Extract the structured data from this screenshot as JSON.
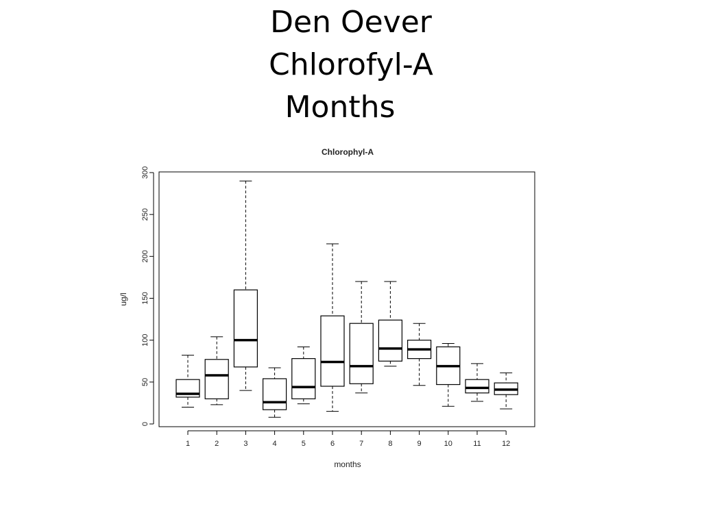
{
  "slide": {
    "title_lines": [
      "Den Oever",
      "Chlorofyl-A",
      "Months"
    ]
  },
  "chart_data": {
    "type": "boxplot",
    "title": "Chlorophyl-A",
    "xlabel": "months",
    "ylabel": "ug/l",
    "ylim": [
      0,
      300
    ],
    "yticks": [
      0,
      50,
      100,
      150,
      200,
      250,
      300
    ],
    "grid": false,
    "categories": [
      "1",
      "2",
      "3",
      "4",
      "5",
      "6",
      "7",
      "8",
      "9",
      "10",
      "11",
      "12"
    ],
    "boxes": [
      {
        "min": 20,
        "q1": 32,
        "median": 36,
        "q3": 53,
        "max": 82
      },
      {
        "min": 23,
        "q1": 30,
        "median": 58,
        "q3": 77,
        "max": 104
      },
      {
        "min": 40,
        "q1": 68,
        "median": 100,
        "q3": 160,
        "max": 290
      },
      {
        "min": 8,
        "q1": 17,
        "median": 26,
        "q3": 54,
        "max": 67
      },
      {
        "min": 24,
        "q1": 30,
        "median": 44,
        "q3": 78,
        "max": 92
      },
      {
        "min": 15,
        "q1": 45,
        "median": 74,
        "q3": 129,
        "max": 215
      },
      {
        "min": 37,
        "q1": 48,
        "median": 69,
        "q3": 120,
        "max": 170
      },
      {
        "min": 69,
        "q1": 75,
        "median": 90,
        "q3": 124,
        "max": 170
      },
      {
        "min": 46,
        "q1": 78,
        "median": 89,
        "q3": 100,
        "max": 120
      },
      {
        "min": 21,
        "q1": 47,
        "median": 69,
        "q3": 92,
        "max": 96
      },
      {
        "min": 27,
        "q1": 37,
        "median": 43,
        "q3": 53,
        "max": 72
      },
      {
        "min": 18,
        "q1": 35,
        "median": 41,
        "q3": 49,
        "max": 61
      }
    ]
  }
}
